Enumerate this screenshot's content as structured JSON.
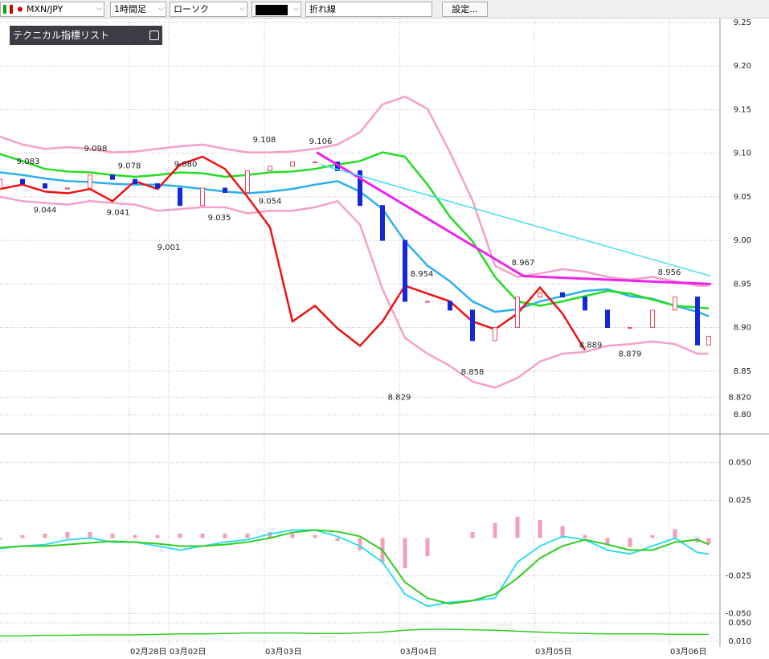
{
  "toolbar": {
    "pair": "MXN/JPY",
    "timeframe": "1時間足",
    "chart_style": "ローソク",
    "line_type": "折れ線",
    "settings": "設定..."
  },
  "indicator_panel": {
    "title": "テクニカル指標リスト"
  },
  "chart_data": [
    {
      "type": "candlestick",
      "xlim": [
        0,
        128
      ],
      "ylim": [
        8.8,
        9.25
      ],
      "grid": true,
      "yticks": [
        9.25,
        {
          "value": 9.2,
          "label": "9.20"
        },
        9.15,
        {
          "value": 9.1,
          "label": "9.10"
        },
        9.05,
        {
          "value": 9,
          "label": "9.00"
        },
        8.95,
        {
          "value": 8.9,
          "label": "8.90"
        },
        8.85,
        {
          "value": 8.82,
          "label": "8.820"
        },
        {
          "value": 8.8,
          "label": "8.80"
        }
      ],
      "x": [
        0,
        4,
        8,
        12,
        16,
        20,
        24,
        28,
        32,
        36,
        40,
        44,
        48,
        52,
        56,
        60,
        64,
        68,
        72,
        76,
        80,
        84,
        88,
        92,
        96,
        100,
        104,
        108,
        112,
        116,
        120,
        124,
        126
      ],
      "open": [
        9.06,
        9.07,
        9.065,
        9.06,
        9.06,
        9.075,
        9.07,
        9.065,
        9.06,
        9.04,
        9.06,
        9.055,
        9.08,
        9.085,
        9.09,
        9.09,
        9.08,
        9.04,
        9.0,
        8.93,
        8.93,
        8.92,
        8.885,
        8.9,
        8.935,
        8.94,
        8.935,
        8.92,
        8.9,
        8.9,
        8.92,
        8.935,
        8.88
      ],
      "close": [
        9.07,
        9.065,
        9.06,
        9.06,
        9.075,
        9.07,
        9.065,
        9.06,
        9.04,
        9.06,
        9.055,
        9.08,
        9.085,
        9.09,
        9.09,
        9.08,
        9.04,
        9.0,
        8.93,
        8.93,
        8.92,
        8.885,
        8.9,
        8.935,
        8.94,
        8.935,
        8.92,
        8.9,
        8.9,
        8.92,
        8.935,
        8.88,
        8.89
      ],
      "up_color": "#e8506a",
      "down_color": "#1428d8",
      "series": [
        {
          "color": "#f4a0c8",
          "values": [
            9.119,
            9.11,
            9.105,
            9.107,
            9.105,
            9.101,
            9.102,
            9.105,
            9.108,
            9.11,
            9.105,
            9.101,
            9.101,
            9.102,
            9.105,
            9.11,
            9.124,
            9.156,
            9.165,
            9.151,
            9.101,
            9.046,
            8.971,
            8.958,
            8.962,
            8.967,
            8.964,
            8.958,
            8.955,
            8.958,
            8.953,
            8.948,
            8.948
          ]
        },
        {
          "color": "#f4a0c8",
          "values": [
            9.05,
            9.045,
            9.043,
            9.041,
            9.045,
            9.043,
            9.041,
            9.034,
            9.036,
            9.038,
            9.038,
            9.031,
            9.034,
            9.034,
            9.038,
            9.045,
            9.018,
            8.944,
            8.888,
            8.87,
            8.856,
            8.838,
            8.831,
            8.842,
            8.861,
            8.87,
            8.872,
            8.879,
            8.881,
            8.884,
            8.881,
            8.87,
            8.87
          ]
        },
        {
          "color": "#2ab0ee",
          "values": [
            9.078,
            9.075,
            9.071,
            9.068,
            9.067,
            9.065,
            9.064,
            9.064,
            9.062,
            9.059,
            9.056,
            9.054,
            9.056,
            9.059,
            9.064,
            9.068,
            9.056,
            9.036,
            8.999,
            8.971,
            8.953,
            8.93,
            8.918,
            8.921,
            8.93,
            8.936,
            8.942,
            8.944,
            8.936,
            8.933,
            8.925,
            8.918,
            8.913
          ]
        },
        {
          "color": "#22dd22",
          "values": [
            9.099,
            9.091,
            9.082,
            9.079,
            9.078,
            9.075,
            9.073,
            9.075,
            9.078,
            9.077,
            9.073,
            9.075,
            9.078,
            9.079,
            9.082,
            9.087,
            9.091,
            9.101,
            9.096,
            9.064,
            9.027,
            8.999,
            8.958,
            8.93,
            8.925,
            8.93,
            8.936,
            8.942,
            8.939,
            8.932,
            8.925,
            8.923,
            8.922
          ]
        },
        {
          "color": "#ee1111",
          "values": [
            9.059,
            9.064,
            9.056,
            9.054,
            9.059,
            9.045,
            9.068,
            9.059,
            9.087,
            9.096,
            9.082,
            9.05,
            9.015,
            8.907,
            8.925,
            8.899,
            8.879,
            8.907,
            8.948,
            8.939,
            8.93,
            8.907,
            8.898,
            8.916,
            8.946,
            8.916,
            8.874,
            null,
            null,
            null,
            null,
            null,
            null
          ]
        }
      ],
      "trendlines": [
        {
          "color": "#ee22ee",
          "x": [
            56.3,
            93.1,
            126.4
          ],
          "values": [
            9.101,
            8.959,
            8.95
          ]
        },
        {
          "color": "#44ddf0",
          "x": [
            57,
            126.4
          ],
          "values": [
            9.087,
            8.959
          ]
        }
      ],
      "high_labels": [
        {
          "x": 5,
          "value": 9.083
        },
        {
          "x": 17,
          "value": 9.098
        },
        {
          "x": 23,
          "value": 9.078
        },
        {
          "x": 33,
          "value": 9.08,
          "label": "9.080"
        },
        {
          "x": 47,
          "value": 9.108
        },
        {
          "x": 57,
          "value": 9.106
        },
        {
          "x": 75,
          "value": 8.954
        },
        {
          "x": 93,
          "value": 8.967
        },
        {
          "x": 119,
          "value": 8.956
        }
      ],
      "low_labels": [
        {
          "x": 8,
          "value": 9.044
        },
        {
          "x": 21,
          "value": 9.041
        },
        {
          "x": 30,
          "value": 9.001
        },
        {
          "x": 39,
          "value": 9.035
        },
        {
          "x": 48,
          "value": 9.054
        },
        {
          "x": 71,
          "value": 8.829
        },
        {
          "x": 84,
          "value": 8.858
        },
        {
          "x": 105,
          "value": 8.889
        },
        {
          "x": 112,
          "value": 8.879
        }
      ]
    },
    {
      "type": "macd",
      "xlim": [
        0,
        128
      ],
      "ylim": [
        -0.0525,
        0.0605
      ],
      "grid": true,
      "yticks": [
        {
          "value": 0.05,
          "label": "0.050"
        },
        {
          "value": 0.025,
          "label": "0.025"
        },
        {
          "value": -0.025,
          "label": "-0.025"
        },
        {
          "value": -0.05,
          "label": "-0.050"
        }
      ],
      "x": [
        0,
        4,
        8,
        12,
        16,
        20,
        24,
        28,
        32,
        36,
        40,
        44,
        48,
        52,
        56,
        60,
        64,
        68,
        72,
        76,
        80,
        84,
        88,
        92,
        96,
        100,
        104,
        108,
        112,
        116,
        120,
        124,
        126
      ],
      "histogram": {
        "color": "#f4a0b4",
        "values": [
          -0.001,
          0.002,
          0.003,
          0.004,
          0.004,
          0.003,
          0.002,
          0.002,
          0.003,
          0.003,
          0.003,
          0.003,
          0.004,
          0.003,
          0.002,
          -0.002,
          -0.008,
          -0.016,
          -0.02,
          -0.012,
          0,
          0.004,
          0.01,
          0.014,
          0.012,
          0.008,
          0.002,
          -0.004,
          -0.006,
          0.002,
          0.006,
          -0.003,
          -0.004
        ]
      },
      "series": [
        {
          "color": "#33ddee",
          "values": [
            -0.0069,
            -0.0053,
            -0.0043,
            -0.0011,
            0,
            -0.0027,
            -0.0027,
            -0.0053,
            -0.008,
            -0.0053,
            -0.0027,
            -0.0011,
            0.0027,
            0.0053,
            0.0053,
            0.0011,
            -0.0053,
            -0.016,
            -0.0372,
            -0.0452,
            -0.0426,
            -0.0415,
            -0.0399,
            -0.016,
            -0.0053,
            0.0011,
            -0.0011,
            -0.008,
            -0.0106,
            -0.0053,
            0,
            -0.0096,
            -0.0106
          ]
        },
        {
          "color": "#33cc22",
          "values": [
            -0.0064,
            -0.0053,
            -0.0053,
            -0.0043,
            -0.0032,
            -0.0021,
            -0.0027,
            -0.0037,
            -0.0053,
            -0.0053,
            -0.0043,
            -0.0027,
            0,
            0.0037,
            0.0053,
            0.0043,
            0.0011,
            -0.008,
            -0.0293,
            -0.0399,
            -0.0436,
            -0.0415,
            -0.0372,
            -0.0266,
            -0.0133,
            -0.0053,
            -0.0011,
            -0.0043,
            -0.008,
            -0.008,
            -0.0027,
            -0.0011,
            -0.0043
          ]
        }
      ]
    },
    {
      "type": "line",
      "xlim": [
        0,
        128
      ],
      "ylim": [
        -0.0022,
        0.0622
      ],
      "grid": true,
      "yticks": [
        {
          "value": 0.05,
          "label": "0.050"
        },
        {
          "value": 0.01,
          "label": "0.010"
        }
      ],
      "xticks": [
        {
          "value": 23,
          "label": "02月28日"
        },
        {
          "value": 30,
          "label": "03月02日"
        },
        {
          "value": 47,
          "label": "03月03日"
        },
        {
          "value": 71,
          "label": "03月04日"
        },
        {
          "value": 95,
          "label": "03月05日"
        },
        {
          "value": 119,
          "label": "03月06日"
        }
      ],
      "x": [
        0,
        4,
        8,
        12,
        16,
        20,
        24,
        28,
        32,
        36,
        40,
        44,
        48,
        52,
        56,
        60,
        64,
        68,
        72,
        76,
        80,
        84,
        88,
        92,
        96,
        100,
        104,
        108,
        112,
        116,
        120,
        124,
        126
      ],
      "series": [
        {
          "color": "#33cc22",
          "values": [
            0.022,
            0.022,
            0.023,
            0.023,
            0.024,
            0.024,
            0.024,
            0.025,
            0.026,
            0.026,
            0.027,
            0.028,
            0.028,
            0.028,
            0.027,
            0.027,
            0.028,
            0.03,
            0.034,
            0.036,
            0.036,
            0.035,
            0.034,
            0.032,
            0.03,
            0.028,
            0.027,
            0.026,
            0.026,
            0.026,
            0.025,
            0.025,
            0.025
          ]
        }
      ]
    }
  ]
}
